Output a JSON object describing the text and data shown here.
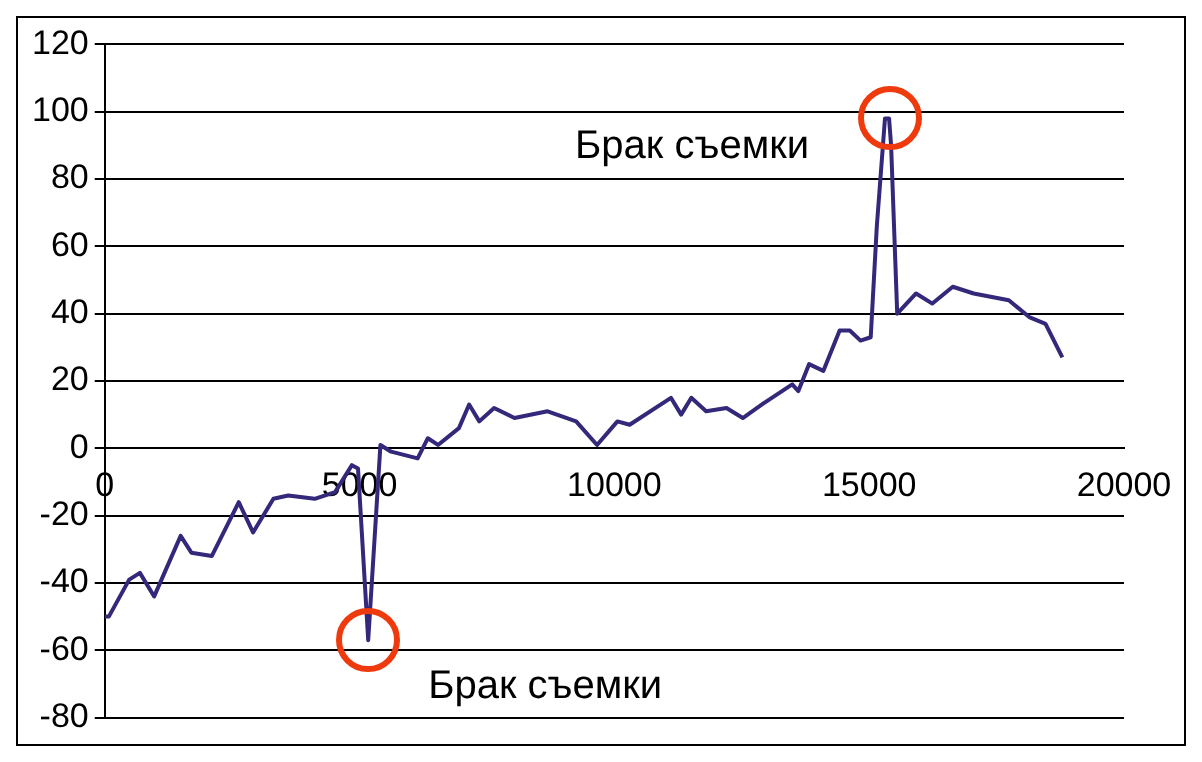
{
  "chart_data": {
    "type": "line",
    "x": [
      0,
      80,
      480,
      690,
      970,
      1490,
      1700,
      2100,
      2630,
      2910,
      3310,
      3600,
      4120,
      4520,
      4850,
      4970,
      5170,
      5410,
      5620,
      6140,
      6340,
      6540,
      6950,
      7150,
      7350,
      7640,
      8040,
      8690,
      9250,
      9660,
      10060,
      10300,
      11110,
      11310,
      11510,
      11800,
      12200,
      12520,
      12890,
      13290,
      13490,
      13610,
      13820,
      14100,
      14420,
      14620,
      14830,
      15030,
      15150,
      15310,
      15390,
      15430,
      15550,
      15920,
      16240,
      16640,
      17050,
      17740,
      18140,
      18460,
      18790
    ],
    "series": [
      {
        "color": "#33287a",
        "values": [
          -50,
          -50,
          -39,
          -37,
          -44,
          -26,
          -31,
          -32,
          -16,
          -25,
          -15,
          -14,
          -15,
          -13,
          -5,
          -6,
          -57,
          1,
          -1,
          -3,
          3,
          1,
          6,
          13,
          8,
          12,
          9,
          11,
          8,
          1,
          8,
          7,
          15,
          10,
          15,
          11,
          12,
          9,
          13,
          17,
          19,
          17,
          25,
          23,
          35,
          35,
          32,
          33,
          66,
          98,
          98,
          90,
          40,
          46,
          43,
          48,
          46,
          44,
          39,
          37,
          27
        ]
      }
    ],
    "xlim": [
      0,
      20000
    ],
    "xticks": [
      0,
      5000,
      10000,
      15000,
      20000
    ],
    "ylim": [
      -80,
      120
    ],
    "yticks": [
      -80,
      -60,
      -40,
      -20,
      0,
      20,
      40,
      60,
      80,
      100,
      120
    ],
    "grid": "y",
    "legend": false,
    "marker": "none",
    "line_style": "solid",
    "annotations": [
      {
        "text": "Брак съемки",
        "x": 15390,
        "y": 98
      },
      {
        "text": "Брак съемки",
        "x": 5170,
        "y": -57
      }
    ]
  }
}
